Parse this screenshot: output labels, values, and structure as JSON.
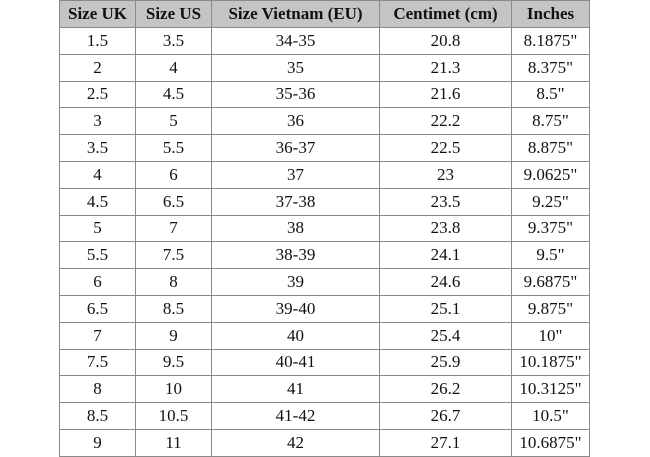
{
  "table": {
    "header": [
      "Size UK",
      "Size US",
      "Size Vietnam (EU)",
      "Centimet (cm)",
      "Inches"
    ],
    "rows": [
      [
        "1.5",
        "3.5",
        "34-35",
        "20.8",
        "8.1875\""
      ],
      [
        "2",
        "4",
        "35",
        "21.3",
        "8.375\""
      ],
      [
        "2.5",
        "4.5",
        "35-36",
        "21.6",
        "8.5\""
      ],
      [
        "3",
        "5",
        "36",
        "22.2",
        "8.75\""
      ],
      [
        "3.5",
        "5.5",
        "36-37",
        "22.5",
        "8.875\""
      ],
      [
        "4",
        "6",
        "37",
        "23",
        "9.0625\""
      ],
      [
        "4.5",
        "6.5",
        "37-38",
        "23.5",
        "9.25\""
      ],
      [
        "5",
        "7",
        "38",
        "23.8",
        "9.375\""
      ],
      [
        "5.5",
        "7.5",
        "38-39",
        "24.1",
        "9.5\""
      ],
      [
        "6",
        "8",
        "39",
        "24.6",
        "9.6875\""
      ],
      [
        "6.5",
        "8.5",
        "39-40",
        "25.1",
        "9.875\""
      ],
      [
        "7",
        "9",
        "40",
        "25.4",
        "10\""
      ],
      [
        "7.5",
        "9.5",
        "40-41",
        "25.9",
        "10.1875\""
      ],
      [
        "8",
        "10",
        "41",
        "26.2",
        "10.3125\""
      ],
      [
        "8.5",
        "10.5",
        "41-42",
        "26.7",
        "10.5\""
      ],
      [
        "9",
        "11",
        "42",
        "27.1",
        "10.6875\""
      ]
    ]
  }
}
